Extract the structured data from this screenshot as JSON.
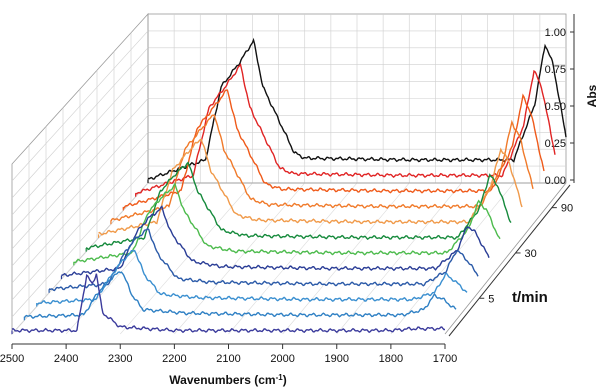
{
  "chart_data": {
    "type": "line",
    "subtype": "3d-waterfall",
    "x_axis": {
      "label": "Wavenumbers (cm",
      "label_sup": "-1",
      "label_close": ")",
      "range": [
        2500,
        1700
      ],
      "reversed": true,
      "ticks": [
        "2500",
        "2400",
        "2300",
        "2200",
        "2100",
        "2000",
        "1900",
        "1800",
        "1700"
      ]
    },
    "y_axis": {
      "label": "Abs",
      "range": [
        0,
        1.1
      ],
      "ticks": [
        "0.00",
        "0.25",
        "0.50",
        "0.75",
        "1.00"
      ]
    },
    "z_axis": {
      "label": "t/min",
      "ticks": [
        "5",
        "30",
        "90"
      ]
    },
    "grid": true,
    "series_colors": [
      "#3b3b9c",
      "#2f80c4",
      "#3a8fd0",
      "#2b5aa8",
      "#2a3d96",
      "#4dbb4d",
      "#168a3c",
      "#f09a4a",
      "#f07a2a",
      "#ef5a1a",
      "#e02424",
      "#111111"
    ],
    "series": [
      {
        "values": [
          [
            2500,
            0.02
          ],
          [
            2380,
            0.02
          ],
          [
            2362,
            0.33
          ],
          [
            2352,
            0.28
          ],
          [
            2344,
            0.34
          ],
          [
            2333,
            0.12
          ],
          [
            2300,
            0.04
          ],
          [
            2200,
            0.02
          ],
          [
            2000,
            0.02
          ],
          [
            1800,
            0.02
          ],
          [
            1760,
            0.03
          ],
          [
            1720,
            0.03
          ],
          [
            1700,
            0.03
          ]
        ]
      },
      {
        "values": [
          [
            2500,
            0.02
          ],
          [
            2390,
            0.03
          ],
          [
            2365,
            0.15
          ],
          [
            2345,
            0.22
          ],
          [
            2320,
            0.28
          ],
          [
            2300,
            0.14
          ],
          [
            2280,
            0.06
          ],
          [
            2200,
            0.04
          ],
          [
            2000,
            0.03
          ],
          [
            1800,
            0.03
          ],
          [
            1760,
            0.06
          ],
          [
            1740,
            0.14
          ],
          [
            1725,
            0.12
          ],
          [
            1700,
            0.06
          ]
        ]
      },
      {
        "values": [
          [
            2500,
            0.02
          ],
          [
            2390,
            0.04
          ],
          [
            2360,
            0.18
          ],
          [
            2340,
            0.26
          ],
          [
            2318,
            0.32
          ],
          [
            2300,
            0.18
          ],
          [
            2270,
            0.07
          ],
          [
            2200,
            0.05
          ],
          [
            2000,
            0.04
          ],
          [
            1800,
            0.04
          ],
          [
            1760,
            0.08
          ],
          [
            1740,
            0.18
          ],
          [
            1725,
            0.15
          ],
          [
            1700,
            0.08
          ]
        ]
      },
      {
        "values": [
          [
            2500,
            0.02
          ],
          [
            2390,
            0.05
          ],
          [
            2360,
            0.22
          ],
          [
            2340,
            0.3
          ],
          [
            2315,
            0.36
          ],
          [
            2298,
            0.22
          ],
          [
            2260,
            0.08
          ],
          [
            2200,
            0.06
          ],
          [
            2000,
            0.05
          ],
          [
            1800,
            0.05
          ],
          [
            1760,
            0.12
          ],
          [
            1740,
            0.24
          ],
          [
            1725,
            0.2
          ],
          [
            1700,
            0.1
          ]
        ]
      },
      {
        "values": [
          [
            2500,
            0.02
          ],
          [
            2390,
            0.06
          ],
          [
            2360,
            0.26
          ],
          [
            2338,
            0.34
          ],
          [
            2312,
            0.4
          ],
          [
            2295,
            0.26
          ],
          [
            2255,
            0.1
          ],
          [
            2200,
            0.07
          ],
          [
            2000,
            0.06
          ],
          [
            1800,
            0.06
          ],
          [
            1760,
            0.16
          ],
          [
            1740,
            0.3
          ],
          [
            1725,
            0.26
          ],
          [
            1700,
            0.12
          ]
        ]
      },
      {
        "values": [
          [
            2500,
            0.02
          ],
          [
            2390,
            0.07
          ],
          [
            2360,
            0.3
          ],
          [
            2336,
            0.38
          ],
          [
            2310,
            0.45
          ],
          [
            2292,
            0.3
          ],
          [
            2250,
            0.11
          ],
          [
            2200,
            0.08
          ],
          [
            2000,
            0.07
          ],
          [
            1800,
            0.07
          ],
          [
            1760,
            0.2
          ],
          [
            1740,
            0.36
          ],
          [
            1725,
            0.31
          ],
          [
            1700,
            0.14
          ]
        ]
      },
      {
        "values": [
          [
            2500,
            0.02
          ],
          [
            2390,
            0.08
          ],
          [
            2360,
            0.34
          ],
          [
            2334,
            0.43
          ],
          [
            2308,
            0.5
          ],
          [
            2290,
            0.34
          ],
          [
            2245,
            0.12
          ],
          [
            2200,
            0.09
          ],
          [
            2000,
            0.08
          ],
          [
            1800,
            0.08
          ],
          [
            1760,
            0.24
          ],
          [
            1740,
            0.43
          ],
          [
            1725,
            0.37
          ],
          [
            1700,
            0.16
          ]
        ]
      },
      {
        "values": [
          [
            2500,
            0.02
          ],
          [
            2390,
            0.09
          ],
          [
            2360,
            0.38
          ],
          [
            2332,
            0.48
          ],
          [
            2306,
            0.56
          ],
          [
            2288,
            0.38
          ],
          [
            2240,
            0.13
          ],
          [
            2200,
            0.1
          ],
          [
            2000,
            0.09
          ],
          [
            1800,
            0.09
          ],
          [
            1760,
            0.28
          ],
          [
            1740,
            0.5
          ],
          [
            1725,
            0.43
          ],
          [
            1700,
            0.18
          ]
        ]
      },
      {
        "values": [
          [
            2500,
            0.02
          ],
          [
            2390,
            0.1
          ],
          [
            2360,
            0.42
          ],
          [
            2330,
            0.53
          ],
          [
            2304,
            0.62
          ],
          [
            2286,
            0.42
          ],
          [
            2235,
            0.14
          ],
          [
            2200,
            0.11
          ],
          [
            2000,
            0.1
          ],
          [
            1800,
            0.1
          ],
          [
            1760,
            0.32
          ],
          [
            1740,
            0.57
          ],
          [
            1725,
            0.49
          ],
          [
            1700,
            0.2
          ]
        ]
      },
      {
        "values": [
          [
            2500,
            0.02
          ],
          [
            2390,
            0.11
          ],
          [
            2360,
            0.46
          ],
          [
            2328,
            0.58
          ],
          [
            2302,
            0.68
          ],
          [
            2284,
            0.46
          ],
          [
            2230,
            0.15
          ],
          [
            2200,
            0.12
          ],
          [
            2000,
            0.11
          ],
          [
            1800,
            0.11
          ],
          [
            1760,
            0.36
          ],
          [
            1740,
            0.64
          ],
          [
            1725,
            0.55
          ],
          [
            1700,
            0.22
          ]
        ]
      },
      {
        "values": [
          [
            2500,
            0.02
          ],
          [
            2390,
            0.12
          ],
          [
            2360,
            0.5
          ],
          [
            2326,
            0.63
          ],
          [
            2300,
            0.74
          ],
          [
            2282,
            0.5
          ],
          [
            2225,
            0.16
          ],
          [
            2200,
            0.13
          ],
          [
            2000,
            0.12
          ],
          [
            1800,
            0.12
          ],
          [
            1760,
            0.4
          ],
          [
            1740,
            0.71
          ],
          [
            1725,
            0.61
          ],
          [
            1700,
            0.24
          ]
        ]
      },
      {
        "values": [
          [
            2500,
            0.02
          ],
          [
            2390,
            0.13
          ],
          [
            2360,
            0.54
          ],
          [
            2324,
            0.68
          ],
          [
            2298,
            0.8
          ],
          [
            2280,
            0.54
          ],
          [
            2220,
            0.17
          ],
          [
            2200,
            0.14
          ],
          [
            2000,
            0.13
          ],
          [
            1800,
            0.13
          ],
          [
            1760,
            0.44
          ],
          [
            1740,
            0.78
          ],
          [
            1725,
            0.67
          ],
          [
            1700,
            0.26
          ]
        ]
      }
    ]
  }
}
